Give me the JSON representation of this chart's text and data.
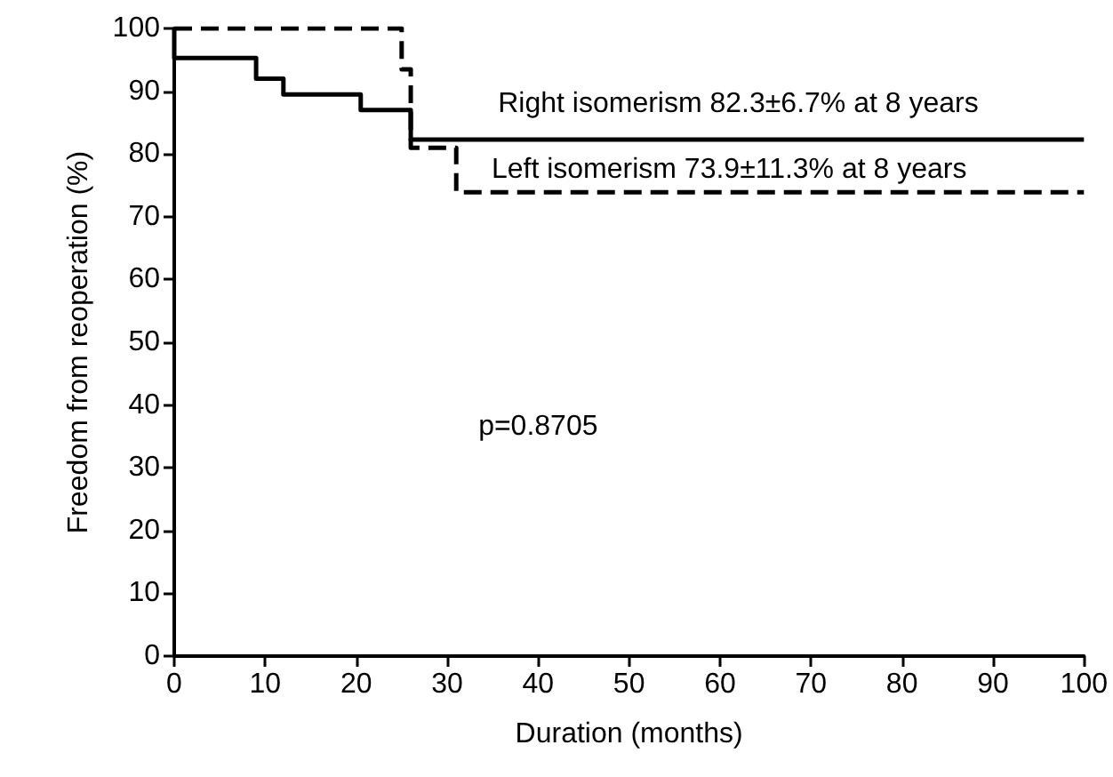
{
  "chart_data": {
    "type": "step",
    "xlabel": "Duration (months)",
    "ylabel": "Freedom from reoperation (%)",
    "xlim": [
      0,
      100
    ],
    "xticks": [
      0,
      10,
      20,
      30,
      40,
      50,
      60,
      70,
      80,
      90,
      100
    ],
    "ylim": [
      0,
      100
    ],
    "yticks": [
      0,
      10,
      20,
      30,
      40,
      50,
      60,
      70,
      80,
      90,
      100
    ],
    "grid": false,
    "legend": false,
    "marker": "none",
    "series": [
      {
        "name": "Right isomerism 82.3±6.7% at 8 years",
        "color": "#000000",
        "line_style": "solid",
        "x": [
          0,
          0,
          9,
          12,
          20.5,
          26,
          100
        ],
        "values": [
          100,
          95.3,
          92,
          89.5,
          87,
          82.3,
          82.3
        ]
      },
      {
        "name": "Left isomerism 73.9±11.3% at 8 years",
        "color": "#000000",
        "line_style": "dashed",
        "x": [
          0,
          25,
          26,
          31,
          100
        ],
        "values": [
          100,
          93.5,
          81,
          73.9,
          73.9
        ]
      }
    ],
    "annotations": [
      "p=0.8705"
    ]
  }
}
